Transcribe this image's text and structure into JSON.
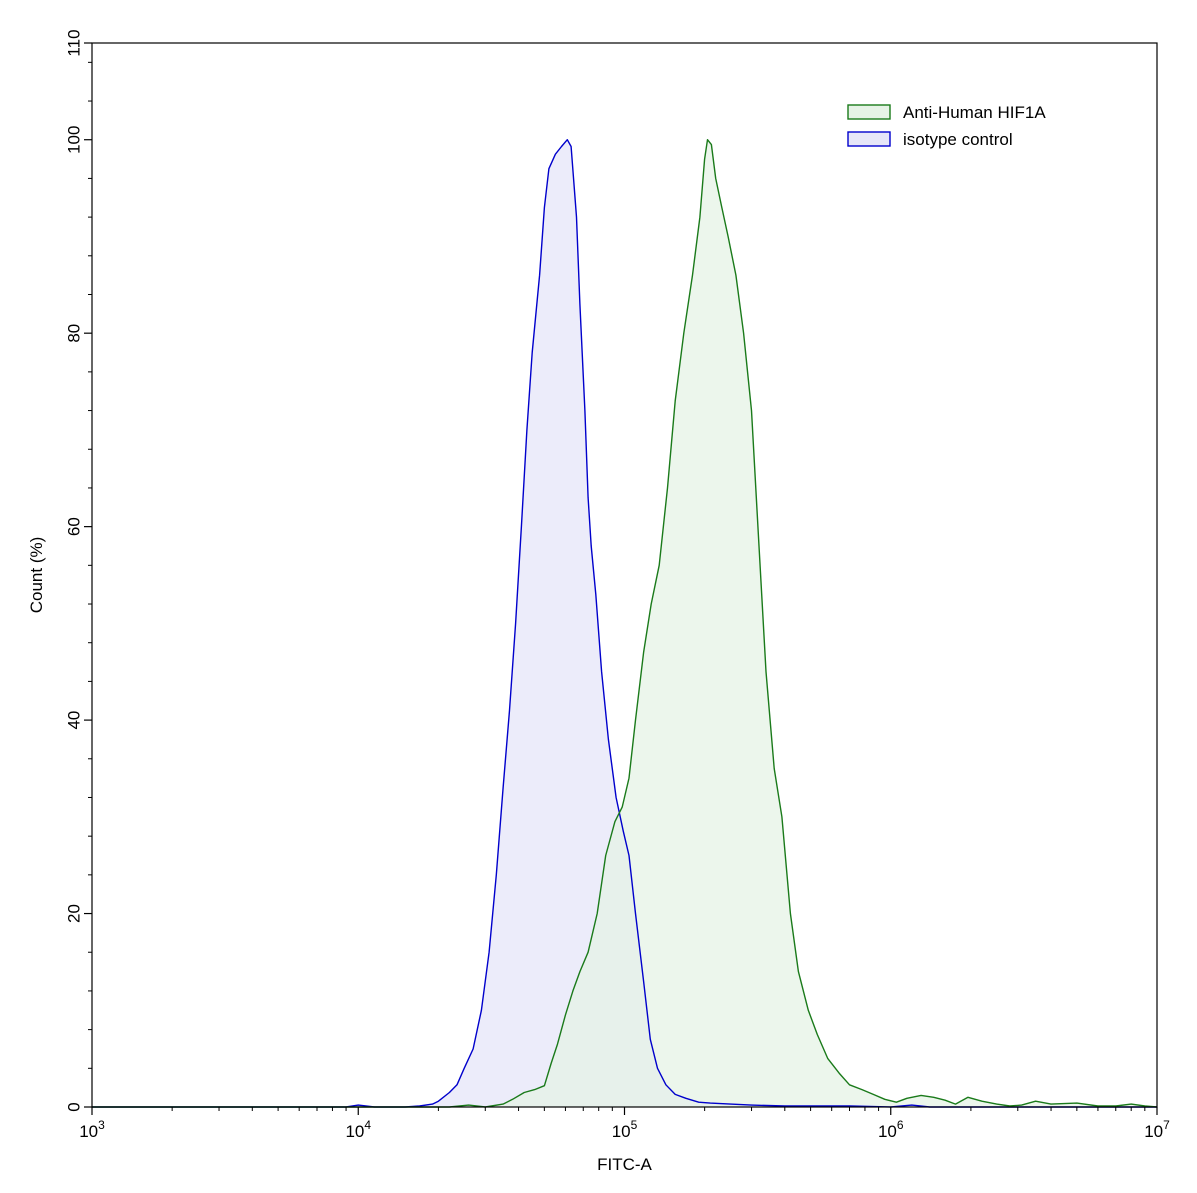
{
  "chart_data": {
    "type": "area",
    "xlabel": "FITC-A",
    "ylabel": "Count  (%)",
    "x_scale": "log",
    "xlim": [
      1000,
      10000000
    ],
    "ylim": [
      0,
      110
    ],
    "grid": false,
    "legend_position": "top-right",
    "x_ticks": [
      {
        "value": 1000,
        "base": "10",
        "exp": "3"
      },
      {
        "value": 10000,
        "base": "10",
        "exp": "4"
      },
      {
        "value": 100000,
        "base": "10",
        "exp": "5"
      },
      {
        "value": 1000000,
        "base": "10",
        "exp": "6"
      },
      {
        "value": 10000000,
        "base": "10",
        "exp": "7"
      }
    ],
    "y_ticks": [
      {
        "value": 0,
        "label": "0"
      },
      {
        "value": 20,
        "label": "20"
      },
      {
        "value": 40,
        "label": "40"
      },
      {
        "value": 60,
        "label": "60"
      },
      {
        "value": 80,
        "label": "80"
      },
      {
        "value": 100,
        "label": "100"
      },
      {
        "value": 110,
        "label": "110"
      }
    ],
    "series": [
      {
        "name": "isotype control",
        "stroke": "#0000cc",
        "fill": "#e6e6f8",
        "points": [
          [
            1000,
            0
          ],
          [
            9000,
            0
          ],
          [
            10000,
            0.2
          ],
          [
            11500,
            0
          ],
          [
            15000,
            0
          ],
          [
            17000,
            0.1
          ],
          [
            19000,
            0.3
          ],
          [
            20000,
            0.6
          ],
          [
            22000,
            1.5
          ],
          [
            23500,
            2.3
          ],
          [
            25000,
            4
          ],
          [
            27000,
            6
          ],
          [
            29000,
            10
          ],
          [
            31000,
            16
          ],
          [
            33000,
            24
          ],
          [
            35000,
            33
          ],
          [
            37000,
            41
          ],
          [
            39000,
            50
          ],
          [
            41000,
            60
          ],
          [
            43000,
            70
          ],
          [
            45000,
            78
          ],
          [
            48000,
            86
          ],
          [
            50000,
            93
          ],
          [
            52000,
            97
          ],
          [
            55000,
            98.5
          ],
          [
            58000,
            99.3
          ],
          [
            61000,
            100
          ],
          [
            63000,
            99.3
          ],
          [
            66000,
            92
          ],
          [
            68000,
            83
          ],
          [
            71000,
            72
          ],
          [
            73000,
            63
          ],
          [
            75000,
            58
          ],
          [
            78000,
            53
          ],
          [
            82000,
            45
          ],
          [
            87000,
            38
          ],
          [
            93000,
            32
          ],
          [
            99000,
            28.5
          ],
          [
            104000,
            26
          ],
          [
            110000,
            20
          ],
          [
            118000,
            13
          ],
          [
            125000,
            7
          ],
          [
            133000,
            4
          ],
          [
            143000,
            2.3
          ],
          [
            155000,
            1.3
          ],
          [
            170000,
            0.9
          ],
          [
            190000,
            0.5
          ],
          [
            210000,
            0.4
          ],
          [
            250000,
            0.3
          ],
          [
            300000,
            0.2
          ],
          [
            400000,
            0.1
          ],
          [
            500000,
            0.1
          ],
          [
            700000,
            0.1
          ],
          [
            1000000,
            0
          ],
          [
            1200000,
            0.2
          ],
          [
            1400000,
            0
          ],
          [
            10000000,
            0
          ]
        ]
      },
      {
        "name": "Anti-Human HIF1A",
        "stroke": "#1a7a1a",
        "fill": "#e6f3e6",
        "points": [
          [
            1000,
            0
          ],
          [
            22000,
            0
          ],
          [
            26000,
            0.2
          ],
          [
            30000,
            0
          ],
          [
            35000,
            0.3
          ],
          [
            38000,
            0.8
          ],
          [
            42000,
            1.5
          ],
          [
            46000,
            1.8
          ],
          [
            50000,
            2.2
          ],
          [
            53000,
            4.5
          ],
          [
            56000,
            6.5
          ],
          [
            60000,
            9.5
          ],
          [
            64000,
            12
          ],
          [
            68000,
            14
          ],
          [
            73000,
            16
          ],
          [
            79000,
            20
          ],
          [
            85000,
            26
          ],
          [
            92000,
            29.5
          ],
          [
            98000,
            31
          ],
          [
            104000,
            34
          ],
          [
            110000,
            40
          ],
          [
            118000,
            47
          ],
          [
            126000,
            52
          ],
          [
            135000,
            56
          ],
          [
            145000,
            64
          ],
          [
            155000,
            73
          ],
          [
            167000,
            80
          ],
          [
            180000,
            86
          ],
          [
            192000,
            92
          ],
          [
            200000,
            98
          ],
          [
            205000,
            100
          ],
          [
            212000,
            99.5
          ],
          [
            220000,
            96
          ],
          [
            232000,
            93
          ],
          [
            245000,
            90
          ],
          [
            262000,
            86
          ],
          [
            280000,
            80
          ],
          [
            300000,
            72
          ],
          [
            320000,
            58
          ],
          [
            340000,
            45
          ],
          [
            365000,
            35
          ],
          [
            390000,
            30
          ],
          [
            420000,
            20
          ],
          [
            450000,
            14
          ],
          [
            490000,
            10
          ],
          [
            530000,
            7.5
          ],
          [
            580000,
            5
          ],
          [
            640000,
            3.5
          ],
          [
            700000,
            2.3
          ],
          [
            780000,
            1.8
          ],
          [
            860000,
            1.3
          ],
          [
            950000,
            0.8
          ],
          [
            1050000,
            0.5
          ],
          [
            1150000,
            0.9
          ],
          [
            1300000,
            1.2
          ],
          [
            1450000,
            1.0
          ],
          [
            1600000,
            0.7
          ],
          [
            1750000,
            0.3
          ],
          [
            1950000,
            1.0
          ],
          [
            2200000,
            0.6
          ],
          [
            2500000,
            0.3
          ],
          [
            2800000,
            0.1
          ],
          [
            3100000,
            0.2
          ],
          [
            3500000,
            0.6
          ],
          [
            4000000,
            0.3
          ],
          [
            5000000,
            0.4
          ],
          [
            6000000,
            0.1
          ],
          [
            7000000,
            0.1
          ],
          [
            8000000,
            0.3
          ],
          [
            9000000,
            0.1
          ],
          [
            10000000,
            0
          ]
        ]
      }
    ],
    "legend": [
      {
        "label": "Anti-Human HIF1A",
        "stroke": "#1a7a1a",
        "fill": "#e6f3e6"
      },
      {
        "label": "isotype control",
        "stroke": "#0000cc",
        "fill": "#e6e6f8"
      }
    ]
  }
}
